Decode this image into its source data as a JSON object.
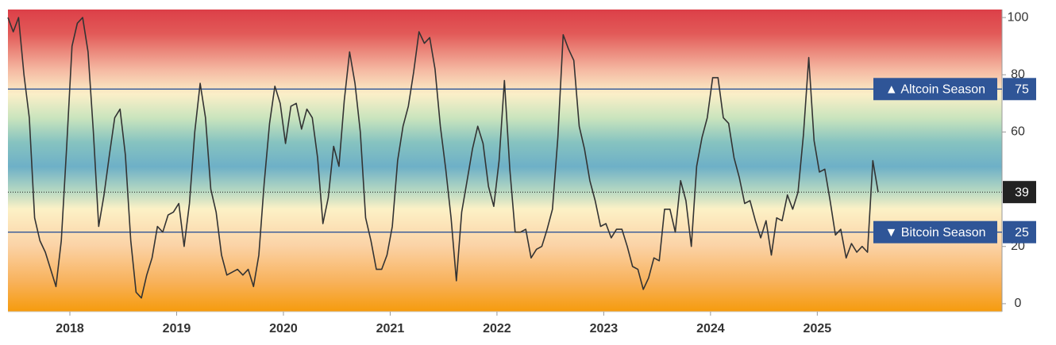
{
  "chart_data": {
    "type": "line",
    "color": "#333333",
    "x": [
      2017.42,
      2017.47,
      2017.52,
      2017.57,
      2017.62,
      2017.67,
      2017.72,
      2017.77,
      2017.82,
      2017.87,
      2017.92,
      2017.97,
      2018.02,
      2018.07,
      2018.12,
      2018.17,
      2018.22,
      2018.27,
      2018.32,
      2018.37,
      2018.42,
      2018.47,
      2018.52,
      2018.57,
      2018.62,
      2018.67,
      2018.72,
      2018.77,
      2018.82,
      2018.87,
      2018.92,
      2018.97,
      2019.02,
      2019.07,
      2019.12,
      2019.17,
      2019.22,
      2019.27,
      2019.32,
      2019.37,
      2019.42,
      2019.47,
      2019.52,
      2019.57,
      2019.62,
      2019.67,
      2019.72,
      2019.77,
      2019.82,
      2019.87,
      2019.92,
      2019.97,
      2020.02,
      2020.07,
      2020.12,
      2020.17,
      2020.22,
      2020.27,
      2020.32,
      2020.37,
      2020.42,
      2020.47,
      2020.52,
      2020.57,
      2020.62,
      2020.67,
      2020.72,
      2020.77,
      2020.82,
      2020.87,
      2020.92,
      2020.97,
      2021.02,
      2021.07,
      2021.12,
      2021.17,
      2021.22,
      2021.27,
      2021.32,
      2021.37,
      2021.42,
      2021.47,
      2021.52,
      2021.57,
      2021.62,
      2021.67,
      2021.72,
      2021.77,
      2021.82,
      2021.87,
      2021.92,
      2021.97,
      2022.02,
      2022.07,
      2022.12,
      2022.17,
      2022.22,
      2022.27,
      2022.32,
      2022.37,
      2022.42,
      2022.47,
      2022.52,
      2022.57,
      2022.62,
      2022.67,
      2022.72,
      2022.77,
      2022.82,
      2022.87,
      2022.92,
      2022.97,
      2023.02,
      2023.07,
      2023.12,
      2023.17,
      2023.22,
      2023.27,
      2023.32,
      2023.37,
      2023.42,
      2023.47,
      2023.52,
      2023.57,
      2023.62,
      2023.67,
      2023.72,
      2023.77,
      2023.82,
      2023.87,
      2023.92,
      2023.97,
      2024.02,
      2024.07,
      2024.12,
      2024.17,
      2024.22,
      2024.27,
      2024.32,
      2024.37,
      2024.42,
      2024.47,
      2024.52,
      2024.57,
      2024.62,
      2024.67,
      2024.72,
      2024.77,
      2024.82,
      2024.87,
      2024.92,
      2024.97,
      2025.02,
      2025.07,
      2025.12,
      2025.17,
      2025.22,
      2025.27,
      2025.32,
      2025.37,
      2025.42,
      2025.47,
      2025.52,
      2025.57
    ],
    "values": [
      100,
      95,
      100,
      80,
      65,
      30,
      22,
      18,
      12,
      6,
      22,
      55,
      90,
      98,
      100,
      88,
      60,
      27,
      38,
      52,
      65,
      68,
      52,
      22,
      4,
      2,
      10,
      16,
      27,
      25,
      31,
      32,
      35,
      20,
      35,
      60,
      77,
      65,
      40,
      32,
      17,
      10,
      11,
      12,
      10,
      12,
      6,
      17,
      42,
      63,
      76,
      70,
      56,
      69,
      70,
      61,
      68,
      65,
      51,
      28,
      37,
      55,
      48,
      71,
      88,
      77,
      60,
      30,
      22,
      12,
      12,
      17,
      27,
      50,
      62,
      69,
      81,
      95,
      91,
      93,
      82,
      62,
      47,
      30,
      8,
      32,
      43,
      54,
      62,
      56,
      41,
      34,
      50,
      78,
      47,
      25,
      25,
      26,
      16,
      19,
      20,
      26,
      33,
      58,
      94,
      89,
      85,
      62,
      54,
      43,
      36,
      27,
      28,
      23,
      26,
      26,
      20,
      13,
      12,
      5,
      9,
      16,
      15,
      33,
      33,
      25,
      43,
      36,
      20,
      48,
      58,
      65,
      79,
      79,
      65,
      63,
      51,
      44,
      35,
      36,
      29,
      23,
      29,
      17,
      30,
      29,
      38,
      33,
      39,
      59,
      86,
      57,
      46,
      47,
      36,
      24,
      26,
      16,
      21,
      18,
      20,
      18,
      50,
      39
    ],
    "xlim": [
      2017.42,
      2026.73
    ],
    "xticks": [
      2018,
      2019,
      2020,
      2021,
      2022,
      2023,
      2024,
      2025
    ],
    "ylim": [
      -2.8,
      102.8
    ],
    "yticks": [
      0,
      20,
      60,
      80,
      100
    ],
    "annotations": [
      {
        "label": "▲ Altcoin Season",
        "value": 75,
        "color": "#2f5597"
      },
      {
        "label": "▼ Bitcoin Season",
        "value": 25,
        "color": "#2f5597"
      }
    ],
    "current": {
      "value": 39,
      "color": "#222222"
    }
  }
}
